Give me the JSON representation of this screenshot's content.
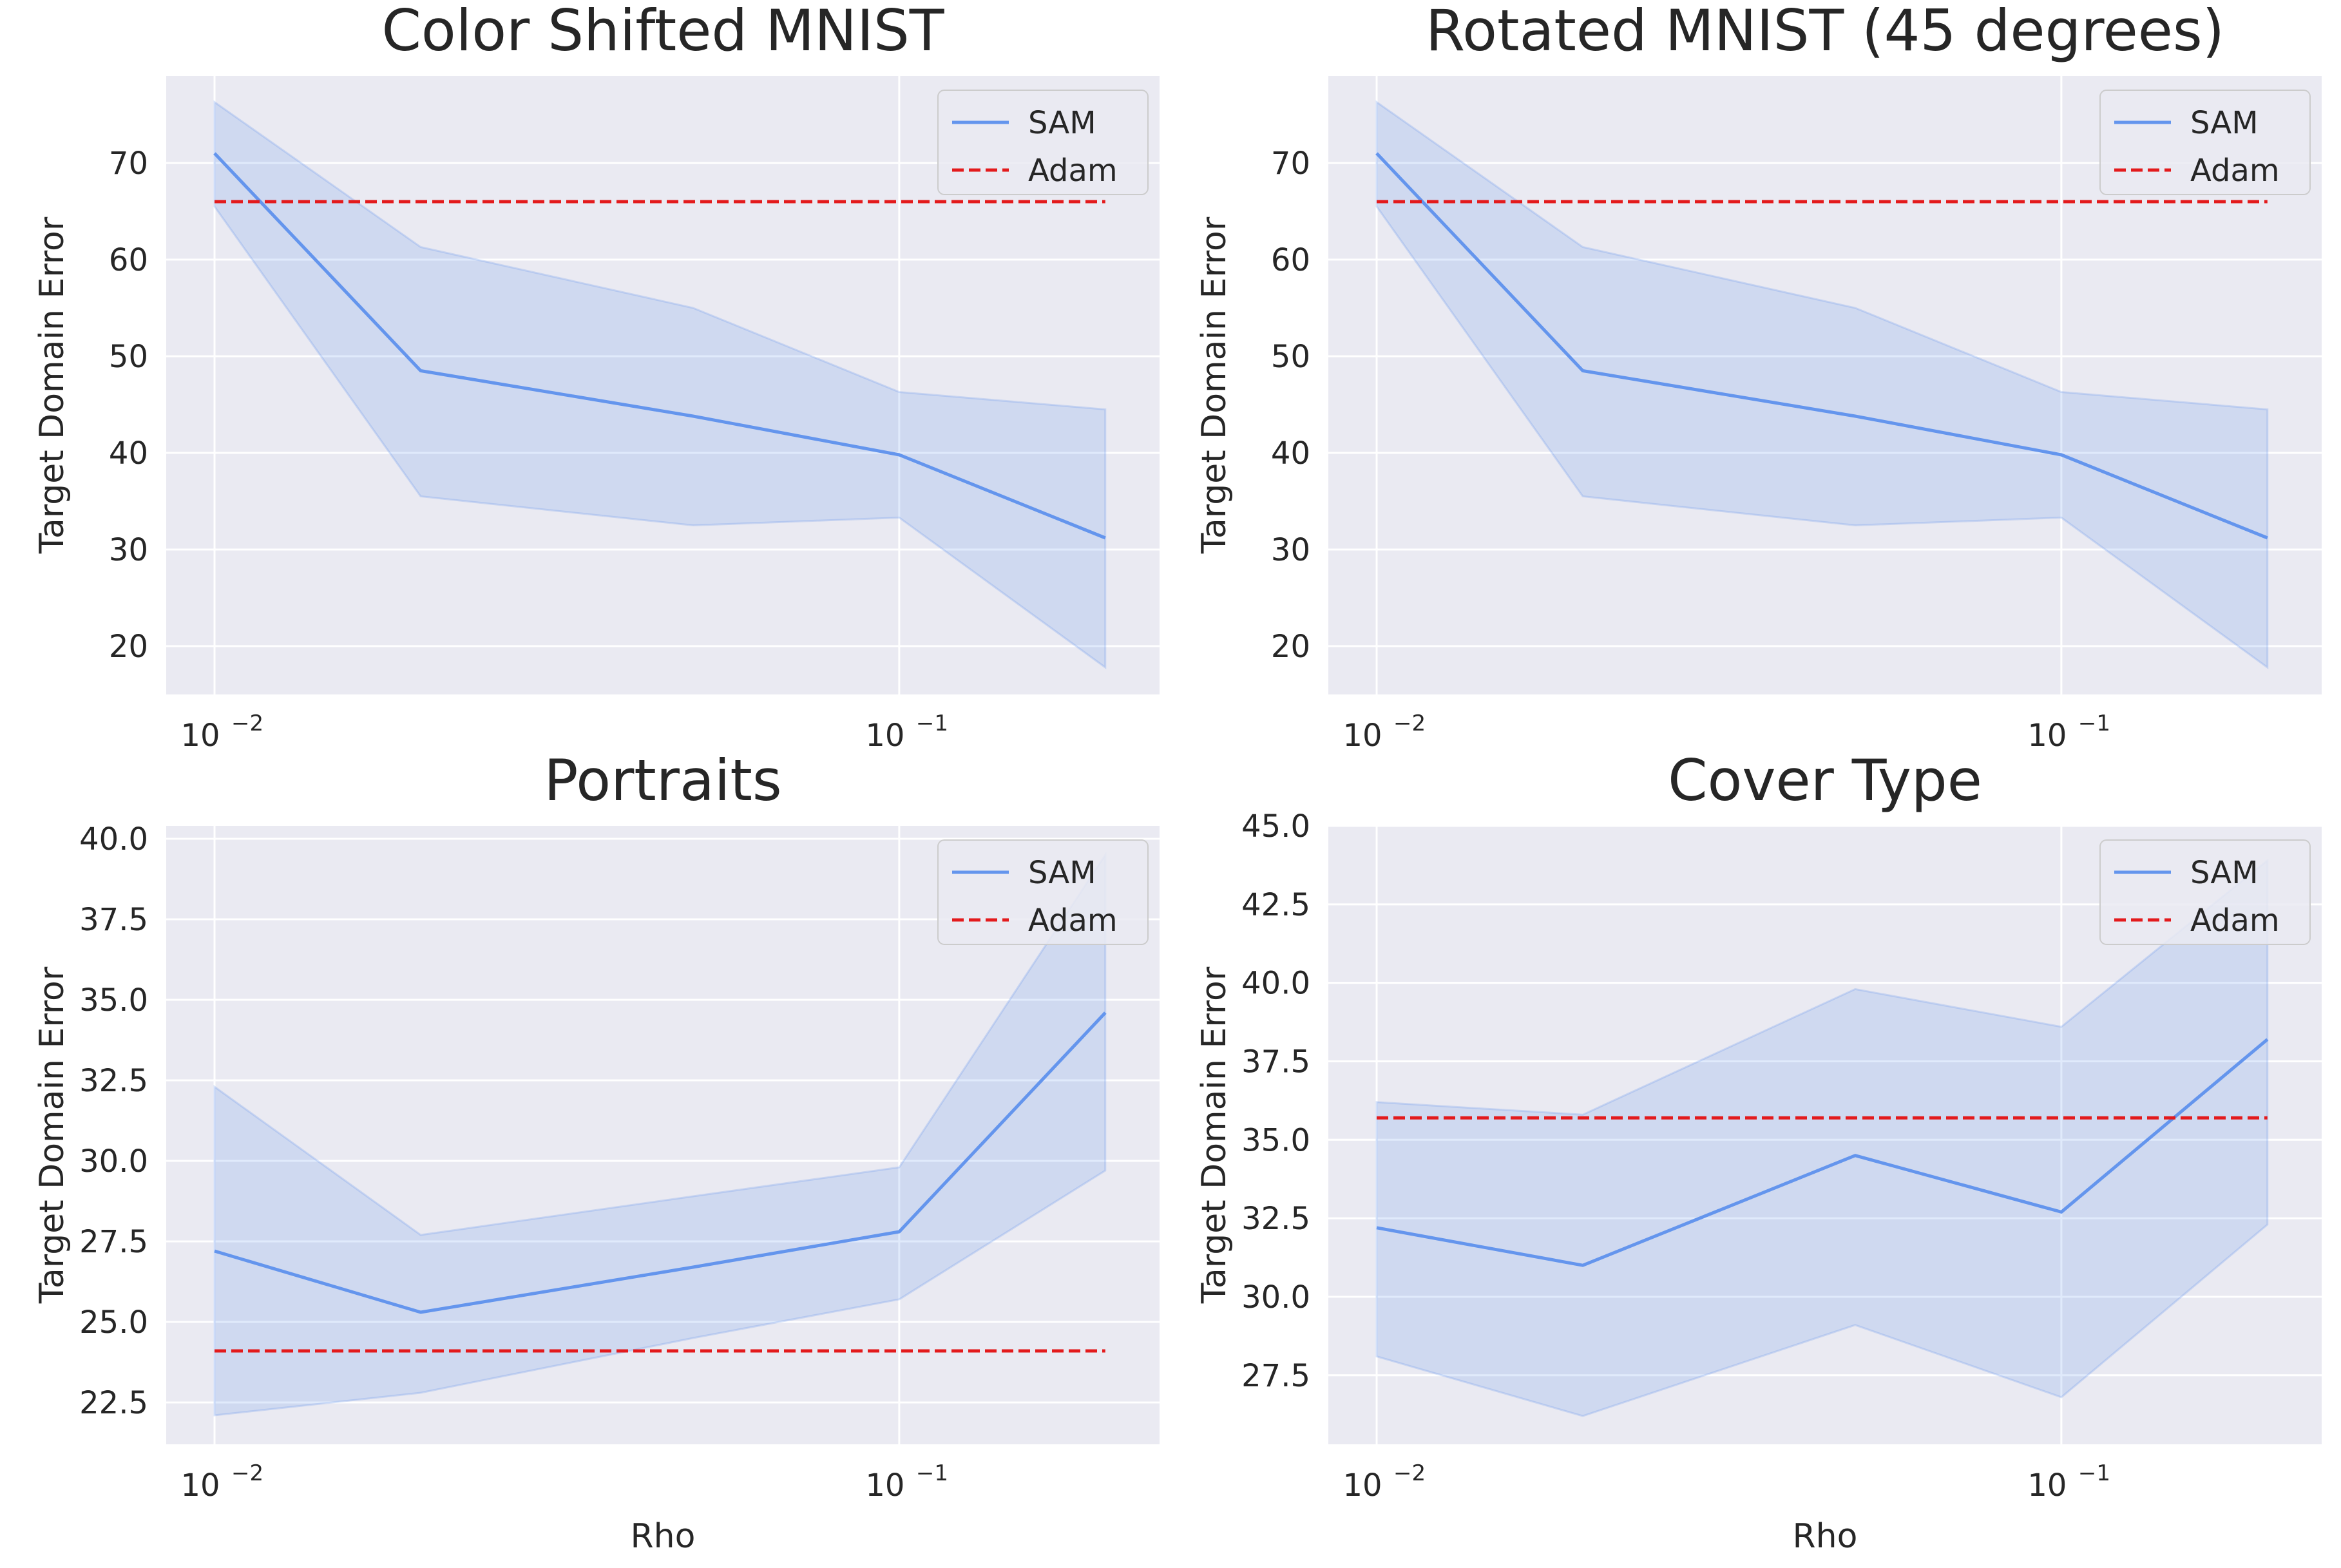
{
  "colors": {
    "background": "#ffffff",
    "axes_face": "#EAEAF2",
    "grid": "#ffffff",
    "sam_line": "#6495ED",
    "sam_band": "#6495ED",
    "adam_line": "#E31A1C"
  },
  "chart_data": [
    {
      "type": "line",
      "title": "Color Shifted MNIST",
      "xlabel": "",
      "ylabel": "Target Domain Error",
      "xscale": "log",
      "xlim": [
        0.0085,
        0.24
      ],
      "ylim": [
        15,
        79
      ],
      "yticks": [
        20,
        30,
        40,
        50,
        60,
        70
      ],
      "xticks": [
        0.01,
        0.1
      ],
      "xtick_labels": [
        "10",
        "10"
      ],
      "xtick_exponents": [
        "−2",
        "−1"
      ],
      "grid": true,
      "legend_position": "upper right",
      "series": [
        {
          "name": "SAM",
          "style": "solid",
          "x": [
            0.01,
            0.02,
            0.05,
            0.1,
            0.2
          ],
          "y": [
            71.0,
            48.5,
            43.8,
            39.8,
            31.2
          ],
          "lower": [
            65.5,
            35.5,
            32.5,
            33.3,
            17.8
          ],
          "upper": [
            76.3,
            61.3,
            55.0,
            46.3,
            44.5
          ]
        },
        {
          "name": "Adam",
          "style": "dashed",
          "x": [
            0.01,
            0.2
          ],
          "y": [
            66.0,
            66.0
          ]
        }
      ]
    },
    {
      "type": "line",
      "title": "Rotated MNIST (45 degrees)",
      "xlabel": "",
      "ylabel": "Target Domain Error",
      "xscale": "log",
      "xlim": [
        0.0085,
        0.24
      ],
      "ylim": [
        15,
        79
      ],
      "yticks": [
        20,
        30,
        40,
        50,
        60,
        70
      ],
      "xticks": [
        0.01,
        0.1
      ],
      "xtick_labels": [
        "10",
        "10"
      ],
      "xtick_exponents": [
        "−2",
        "−1"
      ],
      "grid": true,
      "legend_position": "upper right",
      "series": [
        {
          "name": "SAM",
          "style": "solid",
          "x": [
            0.01,
            0.02,
            0.05,
            0.1,
            0.2
          ],
          "y": [
            71.0,
            48.5,
            43.8,
            39.8,
            31.2
          ],
          "lower": [
            65.5,
            35.5,
            32.5,
            33.3,
            17.8
          ],
          "upper": [
            76.3,
            61.3,
            55.0,
            46.3,
            44.5
          ]
        },
        {
          "name": "Adam",
          "style": "dashed",
          "x": [
            0.01,
            0.2
          ],
          "y": [
            66.0,
            66.0
          ]
        }
      ]
    },
    {
      "type": "line",
      "title": "Portraits",
      "xlabel": "Rho",
      "ylabel": "Target Domain Error",
      "xscale": "log",
      "xlim": [
        0.0085,
        0.24
      ],
      "ylim": [
        21.2,
        40.4
      ],
      "yticks": [
        22.5,
        25.0,
        27.5,
        30.0,
        32.5,
        35.0,
        37.5,
        40.0
      ],
      "ytick_labels": [
        "22.5",
        "25.0",
        "27.5",
        "30.0",
        "32.5",
        "35.0",
        "37.5",
        "40.0"
      ],
      "xticks": [
        0.01,
        0.1
      ],
      "xtick_labels": [
        "10",
        "10"
      ],
      "xtick_exponents": [
        "−2",
        "−1"
      ],
      "grid": true,
      "legend_position": "upper right",
      "series": [
        {
          "name": "SAM",
          "style": "solid",
          "x": [
            0.01,
            0.02,
            0.05,
            0.1,
            0.2
          ],
          "y": [
            27.2,
            25.3,
            26.7,
            27.8,
            34.6
          ],
          "lower": [
            22.1,
            22.8,
            24.5,
            25.7,
            29.7
          ],
          "upper": [
            32.3,
            27.7,
            28.9,
            29.8,
            39.5
          ]
        },
        {
          "name": "Adam",
          "style": "dashed",
          "x": [
            0.01,
            0.2
          ],
          "y": [
            24.1,
            24.1
          ]
        }
      ]
    },
    {
      "type": "line",
      "title": "Cover Type",
      "xlabel": "Rho",
      "ylabel": "Target Domain Error",
      "xscale": "log",
      "xlim": [
        0.0085,
        0.24
      ],
      "ylim": [
        25.3,
        45.0
      ],
      "yticks": [
        27.5,
        30.0,
        32.5,
        35.0,
        37.5,
        40.0,
        42.5,
        45.0
      ],
      "ytick_labels": [
        "27.5",
        "30.0",
        "32.5",
        "35.0",
        "37.5",
        "40.0",
        "42.5",
        "45.0"
      ],
      "xticks": [
        0.01,
        0.1
      ],
      "xtick_labels": [
        "10",
        "10"
      ],
      "xtick_exponents": [
        "−2",
        "−1"
      ],
      "grid": true,
      "legend_position": "upper right",
      "series": [
        {
          "name": "SAM",
          "style": "solid",
          "x": [
            0.01,
            0.02,
            0.05,
            0.1,
            0.2
          ],
          "y": [
            32.2,
            31.0,
            34.5,
            32.7,
            38.2
          ],
          "lower": [
            28.1,
            26.2,
            29.1,
            26.8,
            32.3
          ],
          "upper": [
            36.2,
            35.8,
            39.8,
            38.6,
            43.9
          ]
        },
        {
          "name": "Adam",
          "style": "dashed",
          "x": [
            0.01,
            0.2
          ],
          "y": [
            35.7,
            35.7
          ]
        }
      ]
    }
  ]
}
